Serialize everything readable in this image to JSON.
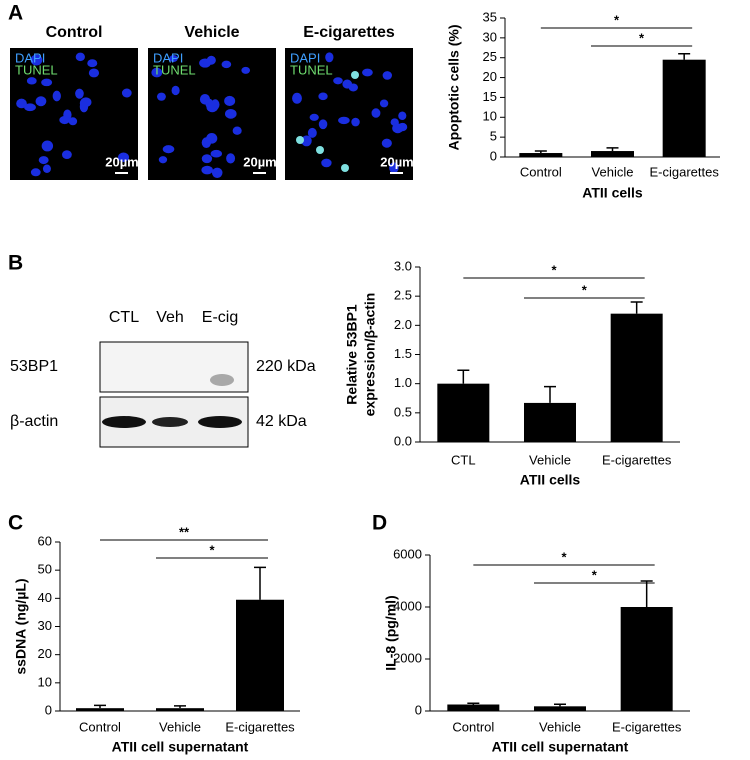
{
  "panels": [
    "A",
    "B",
    "C",
    "D"
  ],
  "micrographs": {
    "titles": [
      "Control",
      "Vehicle",
      "E-cigarettes"
    ],
    "stains": [
      "DAPI",
      "TUNEL"
    ],
    "scale_bar": "20µm"
  },
  "blot": {
    "lanes": [
      "CTL",
      "Veh",
      "E-cig"
    ],
    "rows": [
      {
        "name": "53BP1",
        "size": "220 kDa"
      },
      {
        "name": "β-actin",
        "size": "42 kDa"
      }
    ]
  },
  "chart_data": [
    {
      "type": "bar",
      "ylabel": [
        "Apoptotic cells (%)"
      ],
      "xlabel": "ATII cells",
      "categories": [
        "Control",
        "Vehicle",
        "E-cigarettes"
      ],
      "values": [
        1,
        1.5,
        24.5
      ],
      "errors": [
        0.5,
        0.8,
        1.5
      ],
      "color": "#000000",
      "ylim": [
        0,
        35
      ],
      "yticks": [
        0,
        5,
        10,
        15,
        20,
        25,
        30,
        35
      ],
      "annotations": [
        "*",
        "*"
      ]
    },
    {
      "type": "bar",
      "ylabel": [
        "Relative 53BP1",
        "expression/β-actin"
      ],
      "xlabel": "ATII cells",
      "categories": [
        "CTL",
        "Vehicle",
        "E-cigarettes"
      ],
      "values": [
        1.0,
        0.67,
        2.2
      ],
      "errors": [
        0.23,
        0.28,
        0.2
      ],
      "color": "#000000",
      "ylim": [
        0,
        3
      ],
      "yticks": [
        {
          "value": 0,
          "label": "0.0"
        },
        0.5,
        {
          "value": 1,
          "label": "1.0"
        },
        1.5,
        {
          "value": 2,
          "label": "2.0"
        },
        2.5,
        {
          "value": 3,
          "label": "3.0"
        }
      ],
      "annotations": [
        "*",
        "*"
      ]
    },
    {
      "type": "bar",
      "ylabel": [
        "ssDNA (ng/µL)"
      ],
      "xlabel": "ATII cell supernatant",
      "categories": [
        "Control",
        "Vehicle",
        "E-cigarettes"
      ],
      "values": [
        1,
        1,
        39.5
      ],
      "errors": [
        1,
        0.8,
        11.5
      ],
      "color": "#000000",
      "ylim": [
        0,
        60
      ],
      "yticks": [
        0,
        10,
        20,
        30,
        40,
        50,
        60
      ],
      "annotations": [
        "**",
        "*"
      ]
    },
    {
      "type": "bar",
      "ylabel": [
        "IL-8 (pg/ml)"
      ],
      "xlabel": "ATII cell supernatant",
      "categories": [
        "Control",
        "Vehicle",
        "E-cigarettes"
      ],
      "values": [
        250,
        180,
        4000
      ],
      "errors": [
        50,
        80,
        1000
      ],
      "color": "#000000",
      "ylim": [
        0,
        6000
      ],
      "yticks": [
        0,
        2000,
        4000,
        6000
      ],
      "annotations": [
        "*",
        "*"
      ]
    }
  ]
}
